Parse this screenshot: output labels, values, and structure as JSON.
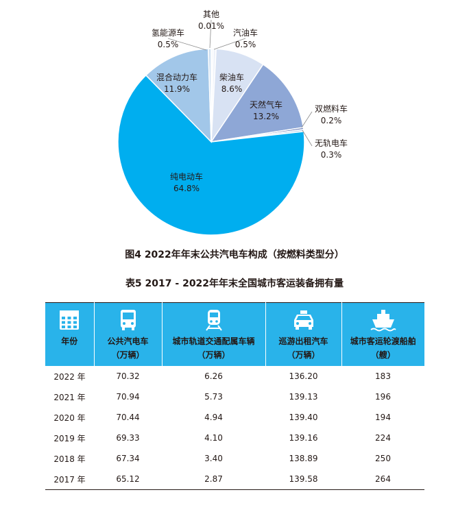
{
  "figure": {
    "caption": "图4   2022年年末公共汽电车构成（按燃料类型分）"
  },
  "chart_data": {
    "type": "pie",
    "slices": [
      {
        "name": "其他",
        "value": 0.01,
        "label": "0.01%",
        "color": "#f2f6fb"
      },
      {
        "name": "汽油车",
        "value": 0.5,
        "label": "0.5%",
        "color": "#eef2f9"
      },
      {
        "name": "柴油车",
        "value": 8.6,
        "label": "8.6%",
        "color": "#d8e2f3"
      },
      {
        "name": "天然气车",
        "value": 13.2,
        "label": "13.2%",
        "color": "#8ea7d6"
      },
      {
        "name": "双燃料车",
        "value": 0.2,
        "label": "0.2%",
        "color": "#6b7fb8"
      },
      {
        "name": "无轨电车",
        "value": 0.3,
        "label": "0.3%",
        "color": "#b9d3ec"
      },
      {
        "name": "纯电动车",
        "value": 64.8,
        "label": "64.8%",
        "color": "#00aeef"
      },
      {
        "name": "混合动力车",
        "value": 11.9,
        "label": "11.9%",
        "color": "#a2c7e9"
      },
      {
        "name": "氢能源车",
        "value": 0.5,
        "label": "0.5%",
        "color": "#cfe0f1"
      }
    ]
  },
  "table": {
    "caption": "表5   2017 - 2022年年末全国城市客运装备拥有量",
    "columns": [
      {
        "label": "年份",
        "unit": "",
        "icon": "calendar-icon"
      },
      {
        "label": "公共汽电车",
        "unit": "（万辆）",
        "icon": "bus-icon"
      },
      {
        "label": "城市轨道交通配属车辆",
        "unit": "（万辆）",
        "icon": "train-icon"
      },
      {
        "label": "巡游出租汽车",
        "unit": "（万辆）",
        "icon": "taxi-icon"
      },
      {
        "label": "城市客运轮渡船舶",
        "unit": "（艘）",
        "icon": "ship-icon"
      }
    ],
    "rows": [
      [
        "2022 年",
        "70.32",
        "6.26",
        "136.20",
        "183"
      ],
      [
        "2021 年",
        "70.94",
        "5.73",
        "139.13",
        "196"
      ],
      [
        "2020 年",
        "70.44",
        "4.94",
        "139.40",
        "194"
      ],
      [
        "2019 年",
        "69.33",
        "4.10",
        "139.16",
        "224"
      ],
      [
        "2018 年",
        "67.34",
        "3.40",
        "138.89",
        "250"
      ],
      [
        "2017 年",
        "65.12",
        "2.87",
        "139.58",
        "264"
      ]
    ],
    "header_color": "#29b3ea"
  }
}
